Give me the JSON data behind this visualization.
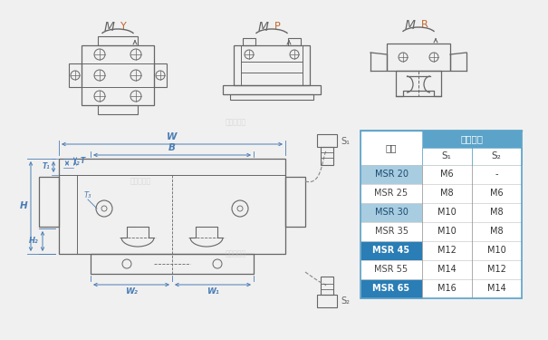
{
  "bg_color": "#f0f0f0",
  "table_header_color": "#5ba3c9",
  "table_row_dark_bold": "#2a7db5",
  "table_row_light_blue": "#a8cce0",
  "table_row_white": "#ffffff",
  "table_text_white": "#ffffff",
  "table_text_dark": "#444444",
  "line_color": "#666666",
  "dim_color": "#4a7db5",
  "title_text": "型号",
  "header_text": "谺栓规格",
  "col1": "S₁",
  "col2": "S₂",
  "rows": [
    {
      "label": "MSR 20",
      "s1": "M6",
      "s2": "-",
      "style": "light"
    },
    {
      "label": "MSR 25",
      "s1": "M8",
      "s2": "M6",
      "style": "white"
    },
    {
      "label": "MSR 30",
      "s1": "M10",
      "s2": "M8",
      "style": "light"
    },
    {
      "label": "MSR 35",
      "s1": "M10",
      "s2": "M8",
      "style": "white"
    },
    {
      "label": "MSR 45",
      "s1": "M12",
      "s2": "M10",
      "style": "dark"
    },
    {
      "label": "MSR 55",
      "s1": "M14",
      "s2": "M12",
      "style": "white"
    },
    {
      "label": "MSR 65",
      "s1": "M16",
      "s2": "M14",
      "style": "dark"
    }
  ],
  "sensor_labels": [
    "S₁",
    "S₂"
  ]
}
